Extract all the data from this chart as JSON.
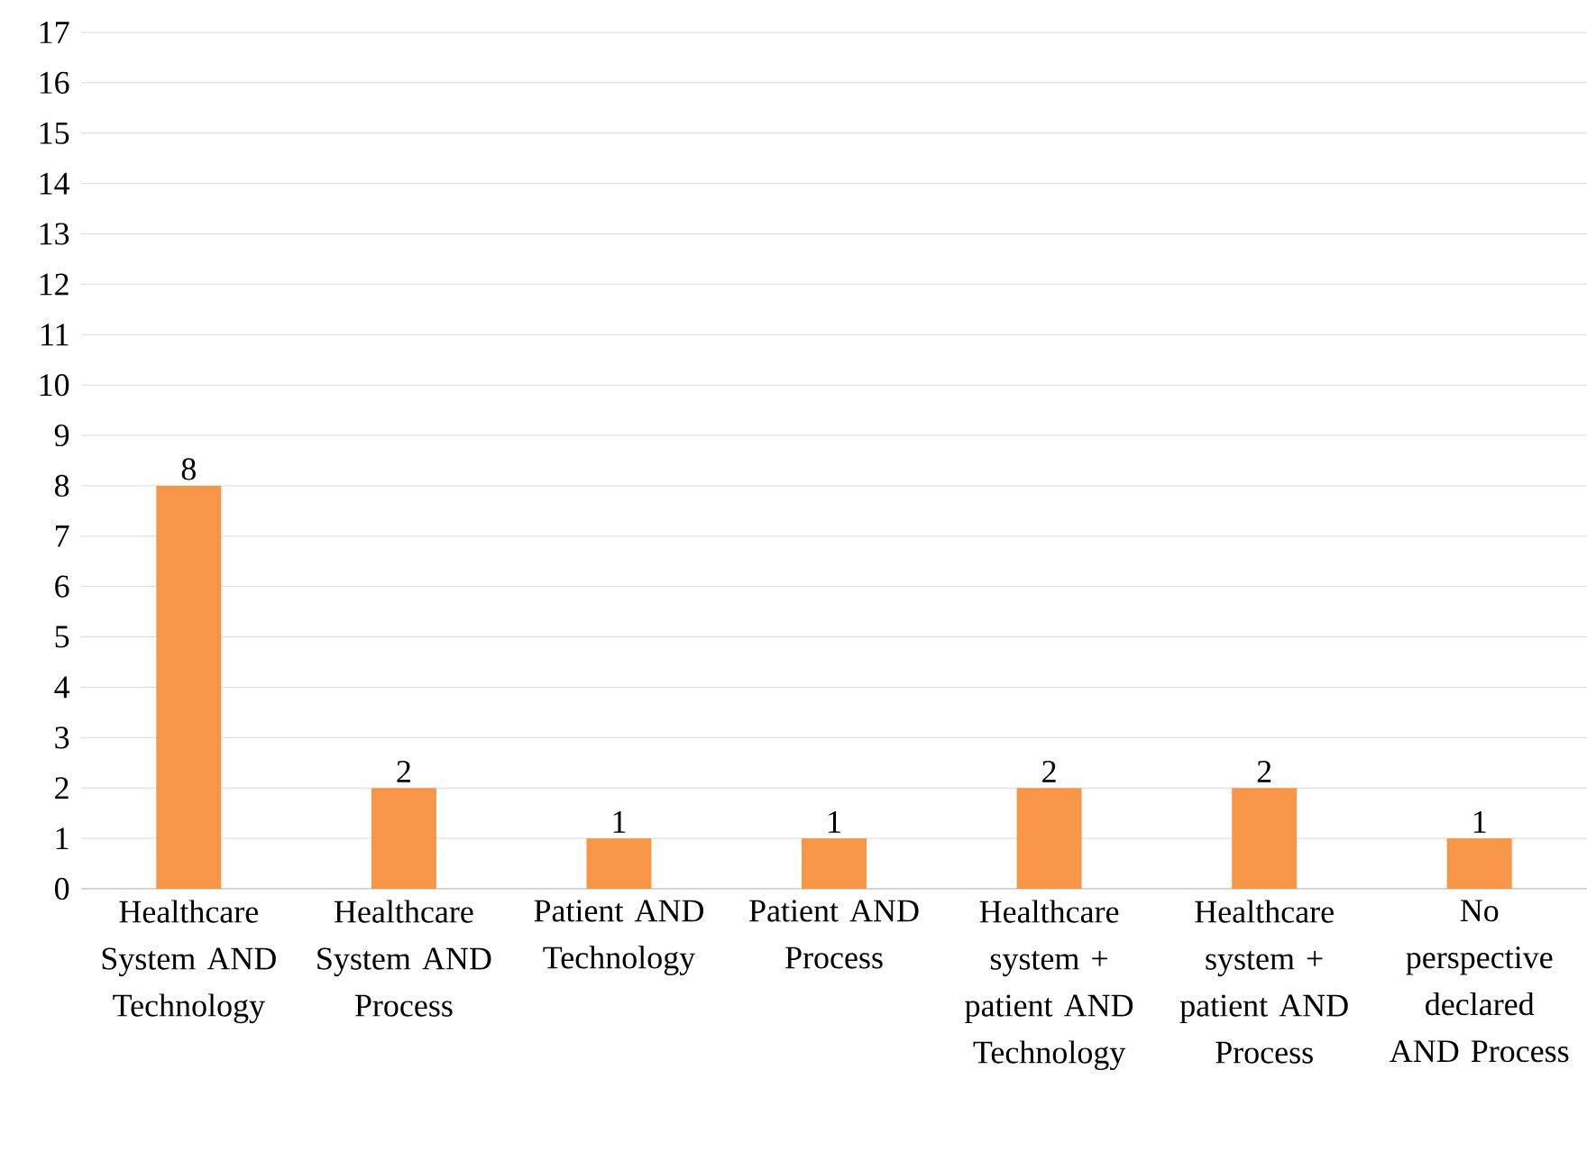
{
  "chart_data": {
    "type": "bar",
    "categories": [
      "Healthcare System AND Technology",
      "Healthcare System AND Process",
      "Patient AND Technology",
      "Patient AND Process",
      "Healthcare system + patient AND Technology",
      "Healthcare system + patient AND Process",
      "No perspective declared AND Process"
    ],
    "values": [
      8,
      2,
      1,
      1,
      2,
      2,
      1
    ],
    "value_labels": [
      "8",
      "2",
      "1",
      "1",
      "2",
      "2",
      "1"
    ],
    "color": "#f79646",
    "ylim": [
      0,
      17
    ],
    "yticks": [
      0,
      1,
      2,
      3,
      4,
      5,
      6,
      7,
      8,
      9,
      10,
      11,
      12,
      13,
      14,
      15,
      16,
      17
    ],
    "grid": "y"
  }
}
